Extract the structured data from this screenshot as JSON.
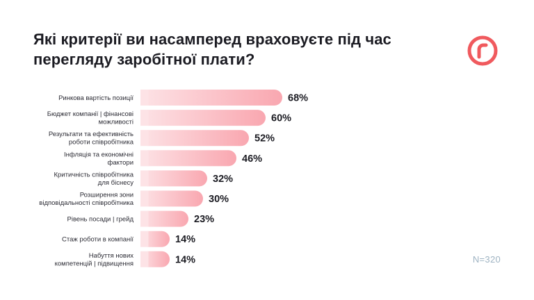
{
  "title": "Які критерії ви насамперед враховуєте під час перегляду заробітної плати?",
  "sample_note": "N=320",
  "logo_icon": "r-circle-logo",
  "colors": {
    "bar_light": "#fde3e6",
    "bar_dark": "#f9a7b0",
    "accent": "#f05a5e",
    "text": "#1b1b22",
    "note": "#9eb3c2"
  },
  "chart_data": {
    "type": "bar",
    "orientation": "horizontal",
    "categories": [
      [
        "Ринкова вартість позиції"
      ],
      [
        "Бюджет компанії | фінансові",
        "можливості"
      ],
      [
        "Результати та ефективність",
        "роботи співробітника"
      ],
      [
        "Інфляція та економічні",
        "фактори"
      ],
      [
        "Критичність співробітника",
        "для біснесу"
      ],
      [
        "Розширення зони",
        "відповідальності співробітника"
      ],
      [
        "Рівень посади | грейд"
      ],
      [
        "Стаж роботи в компанії"
      ],
      [
        "Набуття нових",
        "компетенцій | підвищення"
      ]
    ],
    "values": [
      68,
      60,
      52,
      46,
      32,
      30,
      23,
      14,
      14
    ],
    "value_labels": [
      "68%",
      "60%",
      "52%",
      "46%",
      "32%",
      "30%",
      "23%",
      "14%",
      "14%"
    ],
    "xlim": [
      0,
      100
    ],
    "grid": false,
    "legend": "none"
  }
}
